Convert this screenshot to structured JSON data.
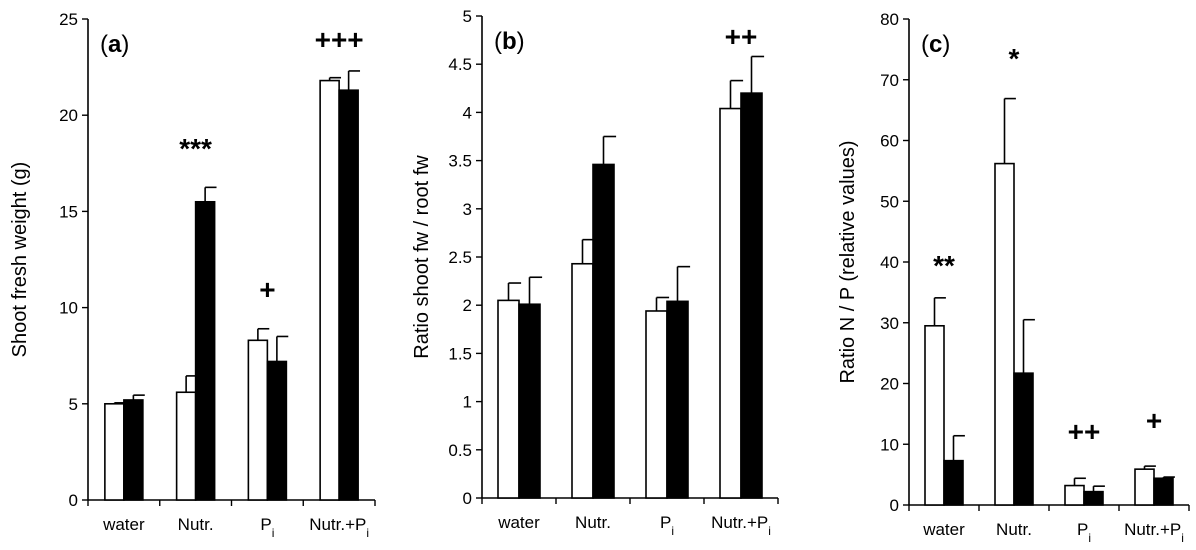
{
  "chart_data": [
    {
      "type": "bar",
      "panel_label": "a",
      "ylabel": "Shoot fresh weight (g)",
      "ylim": [
        0,
        25
      ],
      "yticks": [
        "0",
        "5",
        "10",
        "15",
        "20",
        "25"
      ],
      "categories": [
        {
          "base": "water",
          "sub": ""
        },
        {
          "base": "Nutr.",
          "sub": ""
        },
        {
          "base": "P",
          "sub": "i"
        },
        {
          "base": "Nutr.+P",
          "sub": "i"
        }
      ],
      "series": [
        {
          "fill": "#ffffff",
          "values": [
            5.0,
            5.6,
            8.3,
            21.8
          ],
          "errors": [
            0.05,
            0.85,
            0.6,
            0.15
          ]
        },
        {
          "fill": "#000000",
          "values": [
            5.2,
            15.5,
            7.2,
            21.3
          ],
          "errors": [
            0.25,
            0.75,
            1.3,
            1.0
          ]
        }
      ],
      "annotations": [
        "",
        "***",
        "+",
        "+++"
      ]
    },
    {
      "type": "bar",
      "panel_label": "b",
      "ylabel": "Ratio shoot fw / root fw",
      "ylim": [
        0,
        5
      ],
      "yticks": [
        "0",
        "0.5",
        "1",
        "1.5",
        "2",
        "2.5",
        "3",
        "3.5",
        "4",
        "4.5",
        "5"
      ],
      "categories": [
        {
          "base": "water",
          "sub": ""
        },
        {
          "base": "Nutr.",
          "sub": ""
        },
        {
          "base": "P",
          "sub": "i"
        },
        {
          "base": "Nutr.+P",
          "sub": "i"
        }
      ],
      "series": [
        {
          "fill": "#ffffff",
          "values": [
            2.05,
            2.43,
            1.94,
            4.04
          ],
          "errors": [
            0.18,
            0.25,
            0.14,
            0.29
          ]
        },
        {
          "fill": "#000000",
          "values": [
            2.01,
            3.46,
            2.04,
            4.2
          ],
          "errors": [
            0.28,
            0.29,
            0.36,
            0.38
          ]
        }
      ],
      "annotations": [
        "",
        "",
        "",
        "++"
      ]
    },
    {
      "type": "bar",
      "panel_label": "c",
      "ylabel": "Ratio N / P (relative values)",
      "ylim": [
        0,
        80
      ],
      "yticks": [
        "0",
        "10",
        "20",
        "30",
        "40",
        "50",
        "60",
        "70",
        "80"
      ],
      "categories": [
        {
          "base": "water",
          "sub": ""
        },
        {
          "base": "Nutr.",
          "sub": ""
        },
        {
          "base": "P",
          "sub": "i"
        },
        {
          "base": "Nutr.+P",
          "sub": "i"
        }
      ],
      "series": [
        {
          "fill": "#ffffff",
          "values": [
            29.5,
            56.2,
            3.2,
            5.9
          ],
          "errors": [
            4.6,
            10.7,
            1.2,
            0.5
          ]
        },
        {
          "fill": "#000000",
          "values": [
            7.3,
            21.7,
            2.2,
            4.4
          ],
          "errors": [
            4.1,
            8.8,
            0.9,
            0.2
          ]
        }
      ],
      "annotations": [
        "**",
        "*",
        "++",
        "+"
      ]
    }
  ]
}
